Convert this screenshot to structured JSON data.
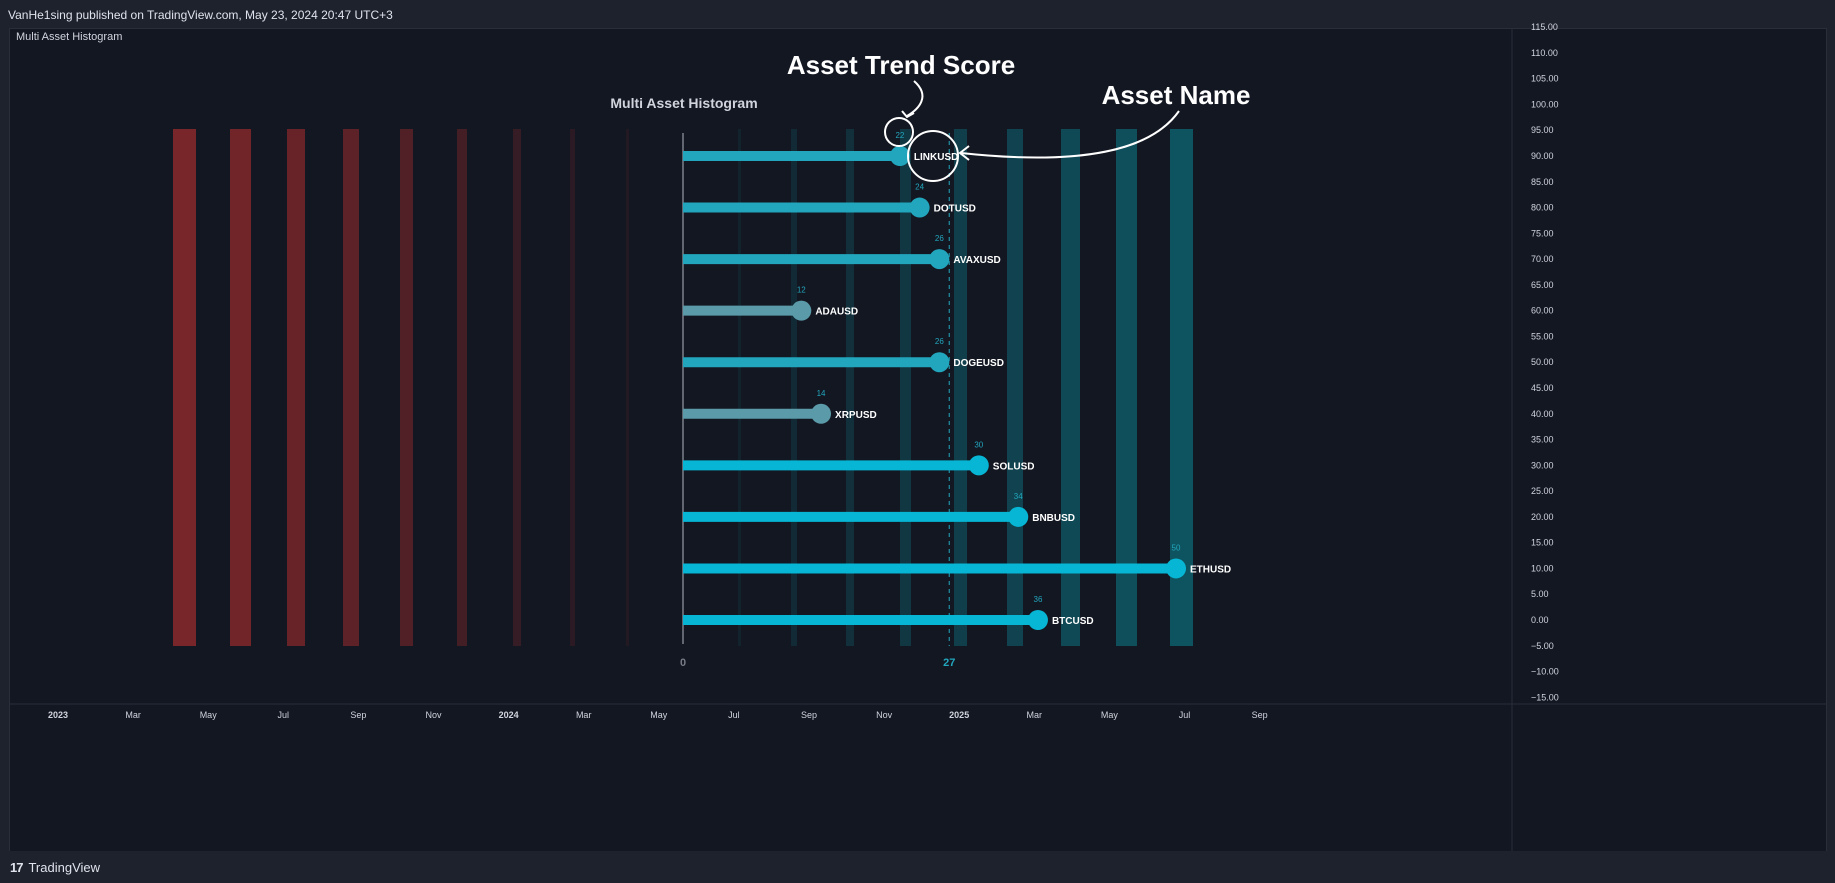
{
  "header": {
    "published_text": "VanHe1sing published on TradingView.com, May 23, 2024 20:47 UTC+3"
  },
  "indicator": {
    "pane_label": "Multi Asset Histogram",
    "title": "Multi Asset Histogram"
  },
  "footer": {
    "logo_mark": "17",
    "brand": "TradingView"
  },
  "annotations": {
    "score_label": "Asset Trend Score",
    "name_label": "Asset Name"
  },
  "colors": {
    "background": "#131722",
    "frame": "#1e222d",
    "teal_strong": "#06b6d4",
    "teal_mid": "#22a6bd",
    "teal_muted": "#5b9aa8",
    "red_bands": "#9b2c2c",
    "dark_teal_band": "#0e5f6b",
    "annotation": "#ffffff"
  },
  "chart_data": {
    "type": "bar",
    "orientation": "horizontal",
    "title": "Multi Asset Histogram",
    "average_label": "27",
    "average_value": 27,
    "zero_label": "0",
    "categories": [
      "LINKUSD",
      "DOTUSD",
      "AVAXUSD",
      "ADAUSD",
      "DOGEUSD",
      "XRPUSD",
      "SOLUSD",
      "BNBUSD",
      "ETHUSD",
      "BTCUSD"
    ],
    "values": [
      22,
      24,
      26,
      12,
      26,
      14,
      30,
      34,
      50,
      36
    ],
    "value_labels": [
      "22",
      "24",
      "26",
      "12",
      "26",
      "14",
      "30",
      "34",
      "50",
      "36"
    ],
    "row_levels": [
      90,
      80,
      70,
      60,
      50,
      40,
      30,
      20,
      10,
      0
    ],
    "y_axis": {
      "ticks": [
        "115.00",
        "110.00",
        "105.00",
        "100.00",
        "95.00",
        "90.00",
        "85.00",
        "80.00",
        "75.00",
        "70.00",
        "65.00",
        "60.00",
        "55.00",
        "50.00",
        "45.00",
        "40.00",
        "35.00",
        "30.00",
        "25.00",
        "20.00",
        "15.00",
        "10.00",
        "5.00",
        "0.00",
        "−5.00",
        "−10.00",
        "−15.00"
      ],
      "tick_values": [
        115,
        110,
        105,
        100,
        95,
        90,
        85,
        80,
        75,
        70,
        65,
        60,
        55,
        50,
        45,
        40,
        35,
        30,
        25,
        20,
        15,
        10,
        5,
        0,
        -5,
        -10,
        -15
      ],
      "range": [
        -15,
        115
      ]
    },
    "x_axis": {
      "ticks": [
        "2023",
        "Mar",
        "May",
        "Jul",
        "Sep",
        "Nov",
        "2024",
        "Mar",
        "May",
        "Jul",
        "Sep",
        "Nov",
        "2025",
        "Mar",
        "May",
        "Jul",
        "Sep"
      ],
      "bold": [
        true,
        false,
        false,
        false,
        false,
        false,
        true,
        false,
        false,
        false,
        false,
        false,
        true,
        false,
        false,
        false,
        false
      ]
    },
    "grid": false
  }
}
